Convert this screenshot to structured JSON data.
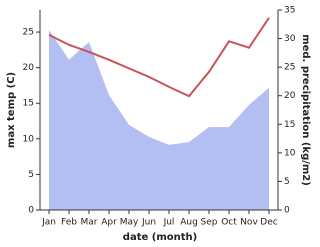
{
  "chart_data": {
    "type": "line",
    "categories": [
      "Jan",
      "Feb",
      "Mar",
      "Apr",
      "May",
      "Jun",
      "Jul",
      "Aug",
      "Sep",
      "Oct",
      "Nov",
      "Dec"
    ],
    "x_label": "date (month)",
    "y_label": "max temp (C)",
    "y2_label": "med. precipitation (kg/m2)",
    "ylim": [
      0,
      28.1
    ],
    "yticks": [
      0,
      5,
      10,
      15,
      20,
      25
    ],
    "y2lim": [
      0,
      35
    ],
    "y2ticks": [
      0,
      5,
      10,
      15,
      20,
      25,
      30,
      35
    ],
    "series": [
      {
        "type": "area",
        "axis": "y2",
        "color": "#b3bff2",
        "values": [
          31.5,
          26.3,
          29.4,
          20.1,
          14.9,
          12.8,
          11.4,
          11.9,
          14.5,
          14.5,
          18.4,
          21.4
        ]
      },
      {
        "type": "line",
        "axis": "y",
        "color": "#c85458",
        "values": [
          24.6,
          23.2,
          22.2,
          21.1,
          19.9,
          18.7,
          17.3,
          16.0,
          19.4,
          23.7,
          22.8,
          27.0
        ]
      }
    ]
  }
}
